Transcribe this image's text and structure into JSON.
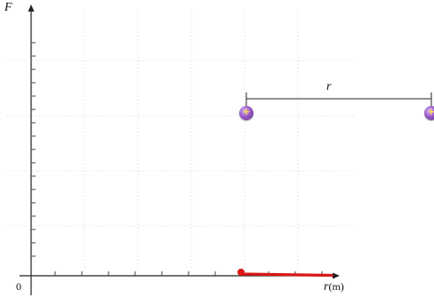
{
  "axes": {
    "y_label": "F",
    "x_label": "r",
    "x_unit": "(m)",
    "origin_label": "0"
  },
  "separation": {
    "label": "r"
  },
  "charges": [
    {
      "sign": "+"
    },
    {
      "sign": "+"
    }
  ],
  "colors": {
    "axis": "#222222",
    "grid": "#cfcfcf",
    "charge": "#9a5cc8",
    "charge_sign": "#ffd84a",
    "force_curve": "#d81919"
  }
}
